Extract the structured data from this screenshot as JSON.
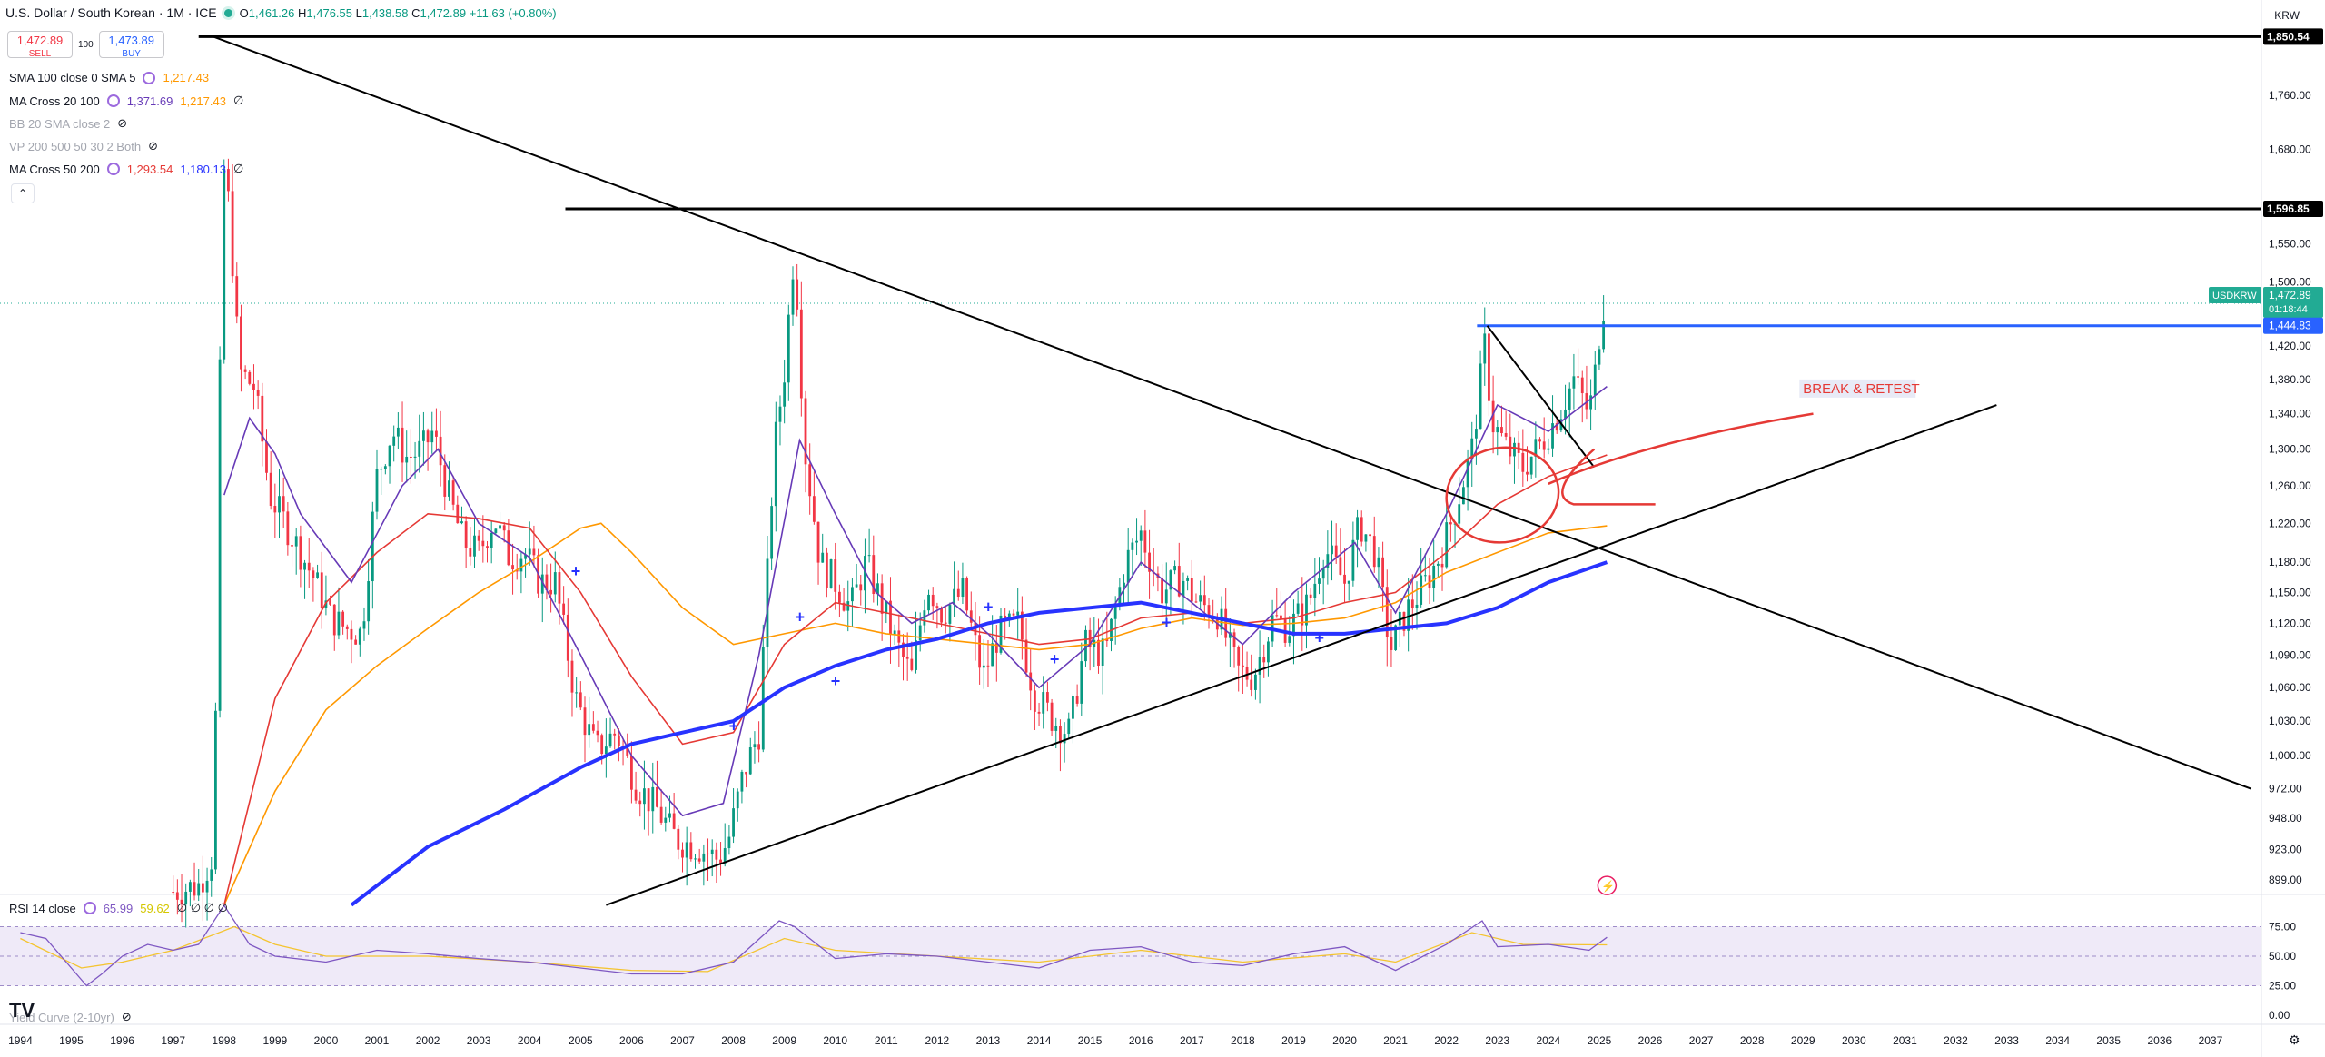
{
  "header": {
    "symbol": "U.S. Dollar / South Korean · 1M · ICE",
    "open_label": "O",
    "open": "1,461.26",
    "high_label": "H",
    "high": "1,476.55",
    "low_label": "L",
    "low": "1,438.58",
    "close_label": "C",
    "close": "1,472.89",
    "change": "+11.63 (+0.80%)",
    "currency": "KRW"
  },
  "trade": {
    "sell_price": "1,472.89",
    "sell_label": "SELL",
    "spread": "100",
    "buy_price": "1,473.89",
    "buy_label": "BUY"
  },
  "indicators": [
    {
      "name": "SMA 100 close 0 SMA 5",
      "v1": "1,217.43",
      "v2": ""
    },
    {
      "name": "MA Cross 20 100",
      "v1": "1,371.69",
      "v2": "1,217.43",
      "v3": "∅"
    },
    {
      "name": "BB 20 SMA close 2",
      "hidden": true
    },
    {
      "name": "VP 200 500 50 30 2 Both",
      "hidden": true
    },
    {
      "name": "MA Cross 50 200",
      "v1": "1,293.54",
      "v2": "1,180.13",
      "v3": "∅"
    }
  ],
  "rsi": {
    "name": "RSI 14 close",
    "v1": "65.99",
    "v2": "59.62",
    "extra": "∅ ∅ ∅ ∅"
  },
  "yield_curve_label": "Yield Curve (2-10yr)",
  "annotation": "BREAK & RETEST",
  "price_tags": {
    "top": "1,850.54",
    "mid": "1,596.85",
    "symbol": "USDKRW",
    "last": "1,472.89",
    "countdown": "01:18:44",
    "support": "1,444.83"
  },
  "colors": {
    "up": "#089981",
    "down": "#f23645",
    "ma_purple": "#673ab7",
    "ma_red": "#e53935",
    "ma_orange": "#ff9800",
    "ma_blue": "#2833ff",
    "hline_blue": "#2962ff",
    "annot": "#e53935"
  },
  "chart_data": [
    {
      "type": "candlestick",
      "title": "U.S. Dollar / South Korean · 1M · ICE",
      "x_ticks": [
        "1994",
        "1995",
        "1996",
        "1997",
        "1998",
        "1999",
        "2000",
        "2001",
        "2002",
        "2003",
        "2004",
        "2005",
        "2006",
        "2007",
        "2008",
        "2009",
        "2010",
        "2011",
        "2012",
        "2013",
        "2014",
        "2015",
        "2016",
        "2017",
        "2018",
        "2019",
        "2020",
        "2021",
        "2022",
        "2023",
        "2024",
        "2025",
        "2026",
        "2027",
        "2028",
        "2029",
        "2030",
        "2031",
        "2032",
        "2033",
        "2034",
        "2035",
        "2036",
        "2037"
      ],
      "y_ticks": [
        899.0,
        923.0,
        948.0,
        972.0,
        1000.0,
        1030.0,
        1060.0,
        1090.0,
        1120.0,
        1150.0,
        1180.0,
        1220.0,
        1260.0,
        1300.0,
        1340.0,
        1380.0,
        1420.0,
        1500.0,
        1550.0,
        1680.0,
        1760.0
      ],
      "y_tick_labels": [
        "899.00",
        "923.00",
        "948.00",
        "972.00",
        "1,000.00",
        "1,030.00",
        "1,060.00",
        "1,090.00",
        "1,120.00",
        "1,150.00",
        "1,180.00",
        "1,220.00",
        "1,260.00",
        "1,300.00",
        "1,340.00",
        "1,380.00",
        "1,420.00",
        "1,500.00",
        "1,550.00",
        "1,680.00",
        "1,760.00"
      ],
      "y_scale": "log",
      "ylim": [
        888,
        1880
      ],
      "close_path": [
        [
          1997.0,
          890
        ],
        [
          1997.5,
          895
        ],
        [
          1997.8,
          920
        ],
        [
          1997.92,
          1400
        ],
        [
          1998.0,
          1650
        ],
        [
          1998.1,
          1600
        ],
        [
          1998.3,
          1390
        ],
        [
          1998.6,
          1370
        ],
        [
          1998.9,
          1250
        ],
        [
          1999.2,
          1220
        ],
        [
          1999.5,
          1190
        ],
        [
          1999.8,
          1160
        ],
        [
          2000.1,
          1125
        ],
        [
          2000.4,
          1115
        ],
        [
          2000.7,
          1110
        ],
        [
          2001.0,
          1270
        ],
        [
          2001.3,
          1320
        ],
        [
          2001.6,
          1290
        ],
        [
          2001.9,
          1300
        ],
        [
          2002.1,
          1320
        ],
        [
          2002.4,
          1250
        ],
        [
          2002.7,
          1200
        ],
        [
          2003.0,
          1190
        ],
        [
          2003.3,
          1225
        ],
        [
          2003.6,
          1185
        ],
        [
          2003.9,
          1190
        ],
        [
          2004.2,
          1160
        ],
        [
          2004.5,
          1160
        ],
        [
          2004.9,
          1050
        ],
        [
          2005.3,
          1005
        ],
        [
          2005.7,
          1020
        ],
        [
          2006.1,
          975
        ],
        [
          2006.5,
          955
        ],
        [
          2006.9,
          930
        ],
        [
          2007.3,
          925
        ],
        [
          2007.7,
          915
        ],
        [
          2007.9,
          930
        ],
        [
          2008.2,
          985
        ],
        [
          2008.5,
          1020
        ],
        [
          2008.8,
          1300
        ],
        [
          2009.0,
          1390
        ],
        [
          2009.2,
          1550
        ],
        [
          2009.4,
          1300
        ],
        [
          2009.7,
          1180
        ],
        [
          2010.0,
          1160
        ],
        [
          2010.3,
          1135
        ],
        [
          2010.6,
          1180
        ],
        [
          2010.9,
          1140
        ],
        [
          2011.2,
          1100
        ],
        [
          2011.5,
          1070
        ],
        [
          2011.8,
          1160
        ],
        [
          2012.1,
          1130
        ],
        [
          2012.5,
          1150
        ],
        [
          2012.9,
          1070
        ],
        [
          2013.2,
          1110
        ],
        [
          2013.6,
          1120
        ],
        [
          2013.9,
          1055
        ],
        [
          2014.3,
          1030
        ],
        [
          2014.6,
          1020
        ],
        [
          2014.9,
          1100
        ],
        [
          2015.3,
          1090
        ],
        [
          2015.7,
          1180
        ],
        [
          2016.0,
          1210
        ],
        [
          2016.4,
          1150
        ],
        [
          2016.8,
          1165
        ],
        [
          2017.1,
          1140
        ],
        [
          2017.5,
          1130
        ],
        [
          2017.9,
          1075
        ],
        [
          2018.2,
          1070
        ],
        [
          2018.6,
          1125
        ],
        [
          2018.9,
          1115
        ],
        [
          2019.3,
          1140
        ],
        [
          2019.6,
          1195
        ],
        [
          2020.0,
          1160
        ],
        [
          2020.3,
          1220
        ],
        [
          2020.6,
          1190
        ],
        [
          2020.9,
          1095
        ],
        [
          2021.2,
          1130
        ],
        [
          2021.6,
          1160
        ],
        [
          2021.9,
          1190
        ],
        [
          2022.2,
          1240
        ],
        [
          2022.5,
          1300
        ],
        [
          2022.75,
          1420
        ],
        [
          2022.9,
          1330
        ],
        [
          2023.2,
          1300
        ],
        [
          2023.5,
          1280
        ],
        [
          2023.9,
          1310
        ],
        [
          2024.2,
          1340
        ],
        [
          2024.5,
          1380
        ],
        [
          2024.8,
          1340
        ],
        [
          2024.95,
          1400
        ],
        [
          2025.05,
          1470
        ],
        [
          2025.15,
          1472.89
        ]
      ],
      "sma100": [
        [
          1998.0,
          880
        ],
        [
          1999.0,
          970
        ],
        [
          2000.0,
          1040
        ],
        [
          2001.0,
          1080
        ],
        [
          2002.0,
          1115
        ],
        [
          2003.0,
          1150
        ],
        [
          2004.0,
          1180
        ],
        [
          2005.0,
          1215
        ],
        [
          2005.4,
          1220
        ],
        [
          2006.0,
          1190
        ],
        [
          2007.0,
          1135
        ],
        [
          2008.0,
          1100
        ],
        [
          2009.0,
          1110
        ],
        [
          2010.0,
          1120
        ],
        [
          2011.0,
          1110
        ],
        [
          2012.0,
          1105
        ],
        [
          2013.0,
          1100
        ],
        [
          2014.0,
          1095
        ],
        [
          2015.0,
          1100
        ],
        [
          2016.0,
          1115
        ],
        [
          2017.0,
          1125
        ],
        [
          2018.0,
          1118
        ],
        [
          2019.0,
          1120
        ],
        [
          2020.0,
          1125
        ],
        [
          2021.0,
          1140
        ],
        [
          2022.0,
          1170
        ],
        [
          2023.0,
          1190
        ],
        [
          2024.0,
          1210
        ],
        [
          2025.15,
          1217.43
        ]
      ],
      "ma20": [
        [
          1998.0,
          1250
        ],
        [
          1998.5,
          1335
        ],
        [
          1999.0,
          1295
        ],
        [
          1999.5,
          1230
        ],
        [
          2000.5,
          1160
        ],
        [
          2001.5,
          1260
        ],
        [
          2002.2,
          1300
        ],
        [
          2003.0,
          1220
        ],
        [
          2004.0,
          1185
        ],
        [
          2005.0,
          1090
        ],
        [
          2006.0,
          1000
        ],
        [
          2007.0,
          950
        ],
        [
          2007.8,
          960
        ],
        [
          2008.5,
          1090
        ],
        [
          2009.3,
          1310
        ],
        [
          2010.0,
          1230
        ],
        [
          2010.8,
          1150
        ],
        [
          2011.5,
          1120
        ],
        [
          2012.3,
          1140
        ],
        [
          2013.0,
          1110
        ],
        [
          2014.0,
          1060
        ],
        [
          2015.0,
          1100
        ],
        [
          2016.0,
          1180
        ],
        [
          2017.0,
          1140
        ],
        [
          2018.0,
          1100
        ],
        [
          2019.0,
          1150
        ],
        [
          2020.2,
          1200
        ],
        [
          2021.0,
          1130
        ],
        [
          2022.0,
          1230
        ],
        [
          2023.0,
          1350
        ],
        [
          2024.0,
          1320
        ],
        [
          2025.15,
          1371.69
        ]
      ],
      "ma50": [
        [
          1998.0,
          880
        ],
        [
          1999.0,
          1050
        ],
        [
          2000.0,
          1140
        ],
        [
          2001.0,
          1190
        ],
        [
          2002.0,
          1230
        ],
        [
          2003.0,
          1225
        ],
        [
          2004.0,
          1215
        ],
        [
          2005.0,
          1150
        ],
        [
          2006.0,
          1070
        ],
        [
          2007.0,
          1010
        ],
        [
          2008.0,
          1020
        ],
        [
          2009.0,
          1100
        ],
        [
          2010.0,
          1140
        ],
        [
          2011.0,
          1130
        ],
        [
          2012.0,
          1120
        ],
        [
          2013.0,
          1110
        ],
        [
          2014.0,
          1100
        ],
        [
          2015.0,
          1105
        ],
        [
          2016.0,
          1125
        ],
        [
          2017.0,
          1130
        ],
        [
          2018.0,
          1120
        ],
        [
          2019.0,
          1125
        ],
        [
          2020.0,
          1140
        ],
        [
          2021.0,
          1150
        ],
        [
          2022.0,
          1190
        ],
        [
          2023.0,
          1240
        ],
        [
          2024.0,
          1270
        ],
        [
          2025.15,
          1293.54
        ]
      ],
      "ma200": [
        [
          2000.5,
          880
        ],
        [
          2002.0,
          925
        ],
        [
          2003.5,
          955
        ],
        [
          2005.0,
          990
        ],
        [
          2006.0,
          1010
        ],
        [
          2007.0,
          1020
        ],
        [
          2008.0,
          1030
        ],
        [
          2009.0,
          1060
        ],
        [
          2010.0,
          1080
        ],
        [
          2011.0,
          1095
        ],
        [
          2012.0,
          1105
        ],
        [
          2013.0,
          1120
        ],
        [
          2014.0,
          1130
        ],
        [
          2015.0,
          1135
        ],
        [
          2016.0,
          1140
        ],
        [
          2017.0,
          1130
        ],
        [
          2018.0,
          1120
        ],
        [
          2019.0,
          1110
        ],
        [
          2020.0,
          1110
        ],
        [
          2021.0,
          1115
        ],
        [
          2022.0,
          1120
        ],
        [
          2023.0,
          1135
        ],
        [
          2024.0,
          1160
        ],
        [
          2025.15,
          1180.13
        ]
      ],
      "cross_markers": [
        [
          2004.9,
          1170
        ],
        [
          2009.3,
          1125
        ],
        [
          2010.0,
          1065
        ],
        [
          2008.0,
          1025
        ],
        [
          2013.0,
          1135
        ],
        [
          2014.3,
          1085
        ],
        [
          2016.5,
          1120
        ],
        [
          2019.5,
          1105
        ]
      ],
      "hlines": [
        1850.54,
        1596.85,
        1444.83
      ],
      "trendlines": [
        {
          "from": [
            1997.8,
            1850
          ],
          "to": [
            2037.8,
            972
          ]
        },
        {
          "from": [
            2005.5,
            880
          ],
          "to": [
            2032.8,
            1350
          ]
        },
        {
          "from": [
            2022.8,
            1444.83
          ],
          "to": [
            2024.9,
            1280
          ]
        }
      ]
    },
    {
      "type": "line",
      "title": "RSI 14 close",
      "y_ticks": [
        75.0,
        50.0,
        25.0,
        0.0
      ],
      "ylim": [
        0,
        100
      ],
      "rsi": [
        [
          1994,
          70
        ],
        [
          1994.5,
          65
        ],
        [
          1995.0,
          40
        ],
        [
          1995.3,
          25
        ],
        [
          1995.6,
          35
        ],
        [
          1996.0,
          50
        ],
        [
          1996.5,
          60
        ],
        [
          1997.0,
          55
        ],
        [
          1997.5,
          60
        ],
        [
          1998.0,
          93
        ],
        [
          1998.5,
          60
        ],
        [
          1999.0,
          50
        ],
        [
          2000.0,
          45
        ],
        [
          2001.0,
          55
        ],
        [
          2002.0,
          52
        ],
        [
          2003.0,
          48
        ],
        [
          2004.0,
          45
        ],
        [
          2005.0,
          40
        ],
        [
          2006.0,
          35
        ],
        [
          2007.0,
          35
        ],
        [
          2008.0,
          45
        ],
        [
          2008.9,
          80
        ],
        [
          2009.2,
          75
        ],
        [
          2010.0,
          48
        ],
        [
          2011.0,
          52
        ],
        [
          2012.0,
          50
        ],
        [
          2013.0,
          45
        ],
        [
          2014.0,
          40
        ],
        [
          2015.0,
          55
        ],
        [
          2016.0,
          58
        ],
        [
          2017.0,
          45
        ],
        [
          2018.0,
          42
        ],
        [
          2019.0,
          52
        ],
        [
          2020.0,
          58
        ],
        [
          2021.0,
          38
        ],
        [
          2022.0,
          60
        ],
        [
          2022.7,
          80
        ],
        [
          2023.0,
          58
        ],
        [
          2024.0,
          60
        ],
        [
          2024.8,
          55
        ],
        [
          2025.15,
          65.99
        ]
      ],
      "rsi_ma": [
        [
          1994,
          65
        ],
        [
          1995.2,
          40
        ],
        [
          1996.0,
          45
        ],
        [
          1997.0,
          55
        ],
        [
          1998.2,
          75
        ],
        [
          1999.0,
          60
        ],
        [
          2000.0,
          50
        ],
        [
          2002.0,
          50
        ],
        [
          2004.0,
          45
        ],
        [
          2006.0,
          38
        ],
        [
          2007.5,
          37
        ],
        [
          2009.0,
          65
        ],
        [
          2010.0,
          55
        ],
        [
          2012.0,
          50
        ],
        [
          2014.0,
          45
        ],
        [
          2016.0,
          55
        ],
        [
          2018.0,
          45
        ],
        [
          2020.0,
          52
        ],
        [
          2021.0,
          45
        ],
        [
          2022.5,
          70
        ],
        [
          2023.5,
          60
        ],
        [
          2025.15,
          59.62
        ]
      ]
    }
  ]
}
